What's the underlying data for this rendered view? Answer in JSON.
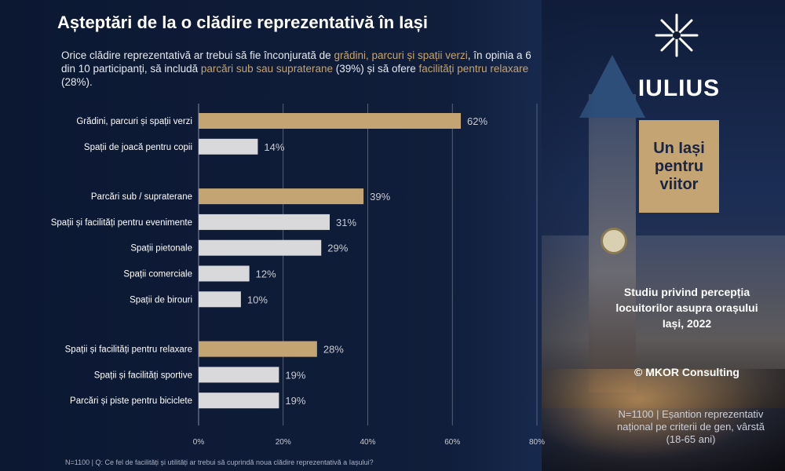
{
  "title": "Așteptări de la o clădire reprezentativă  în Iași",
  "subtitle": {
    "p1": "Orice clădire reprezentativă ar trebui să fie înconjurată de ",
    "h1": "grădini, parcuri și spații verzi",
    "p2": ", în opinia a 6 din 10 participanți, să includă ",
    "h2": "parcări sub sau supraterane",
    "p3": " (39%) și să ofere ",
    "h3": "facilități pentru relaxare",
    "p4": " (28%)."
  },
  "footnote": "N=1100 | Q: Ce fel de facilități și utilități ar trebui să cuprindă noua clădire reprezentativă a Iașului?",
  "brand": {
    "name": "IULIUS",
    "badge": "Un Iași pentru viitor",
    "study": "Studiu privind percepția locuitorilor asupra orașului Iași, 2022",
    "copyright": "© MKOR Consulting",
    "sample": "N=1100 | Eșantion reprezentativ național pe criterii de gen, vârstă (18-65 ani)"
  },
  "colors": {
    "highlight": "#c4a472",
    "bar": "#d9d9dc",
    "accent_text": "#c9a36a"
  },
  "chart_data": {
    "type": "bar",
    "orientation": "horizontal",
    "xlim": [
      0,
      80
    ],
    "ticks": [
      "0%",
      "20%",
      "40%",
      "60%",
      "80%"
    ],
    "grid": true,
    "groups": [
      [
        {
          "label": "Grădini, parcuri și spații verzi",
          "value": 62,
          "highlight": true
        },
        {
          "label": "Spații de joacă pentru copii",
          "value": 14,
          "highlight": false
        }
      ],
      [
        {
          "label": "Parcări sub / supraterane",
          "value": 39,
          "highlight": true
        },
        {
          "label": "Spații și facilități pentru evenimente",
          "value": 31,
          "highlight": false
        },
        {
          "label": "Spații pietonale",
          "value": 29,
          "highlight": false
        },
        {
          "label": "Spații comerciale",
          "value": 12,
          "highlight": false
        },
        {
          "label": "Spații de birouri",
          "value": 10,
          "highlight": false
        }
      ],
      [
        {
          "label": "Spații și facilități pentru relaxare",
          "value": 28,
          "highlight": true
        },
        {
          "label": "Spații și facilități sportive",
          "value": 19,
          "highlight": false
        },
        {
          "label": "Parcări și piste pentru biciclete",
          "value": 19,
          "highlight": false
        }
      ]
    ]
  }
}
